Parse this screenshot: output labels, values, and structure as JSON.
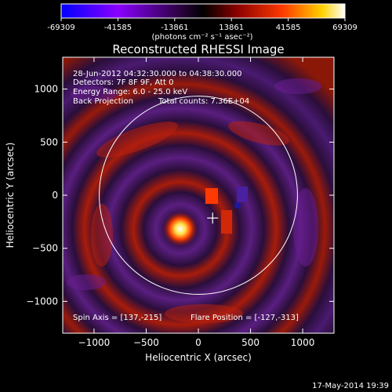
{
  "chart_data": {
    "type": "heatmap",
    "title": "Reconstructed RHESSI Image",
    "colorbar": {
      "ticks": [
        "-69309",
        "-41585",
        "-13861",
        "13861",
        "41585",
        "69309"
      ],
      "unit": "(photons cm⁻² s⁻¹ asec⁻²)",
      "range": [
        -69309,
        69309
      ],
      "colors": [
        "#0000ff",
        "#8a00ff",
        "#2a0040",
        "#000000",
        "#8b0000",
        "#ff3a00",
        "#ffd200",
        "#ffffff"
      ]
    },
    "annotations": {
      "time_range": "28-Jun-2012 04:32:30.000 to 04:38:30.000",
      "detectors": "Detectors: 7F 8F 9F, Att 0",
      "energy": "Energy Range: 6.0 - 25.0 keV",
      "method": "Back Projection",
      "total_counts": "Total counts: 7.36E+04",
      "spin_axis": "Spin Axis = [137,-215]",
      "flare_position": "Flare Position = [-127,-313]"
    },
    "xlabel": "Heliocentric X (arcsec)",
    "ylabel": "Heliocentric Y (arcsec)",
    "xlim": [
      -1300,
      1300
    ],
    "ylim": [
      -1300,
      1300
    ],
    "x_ticks": [
      -1000,
      -500,
      0,
      500,
      1000
    ],
    "y_ticks": [
      -1000,
      -500,
      0,
      500,
      1000
    ],
    "x_tick_labels": [
      "−1000",
      "−500",
      "0",
      "500",
      "1000"
    ],
    "y_tick_labels": [
      "−1000",
      "−500",
      "0",
      "500",
      "1000"
    ],
    "solar_limb_radius": 950,
    "spin_axis": [
      137,
      -215
    ],
    "flare_position": [
      -127,
      -313
    ]
  },
  "footer": {
    "timestamp": "17-May-2014 19:39"
  }
}
